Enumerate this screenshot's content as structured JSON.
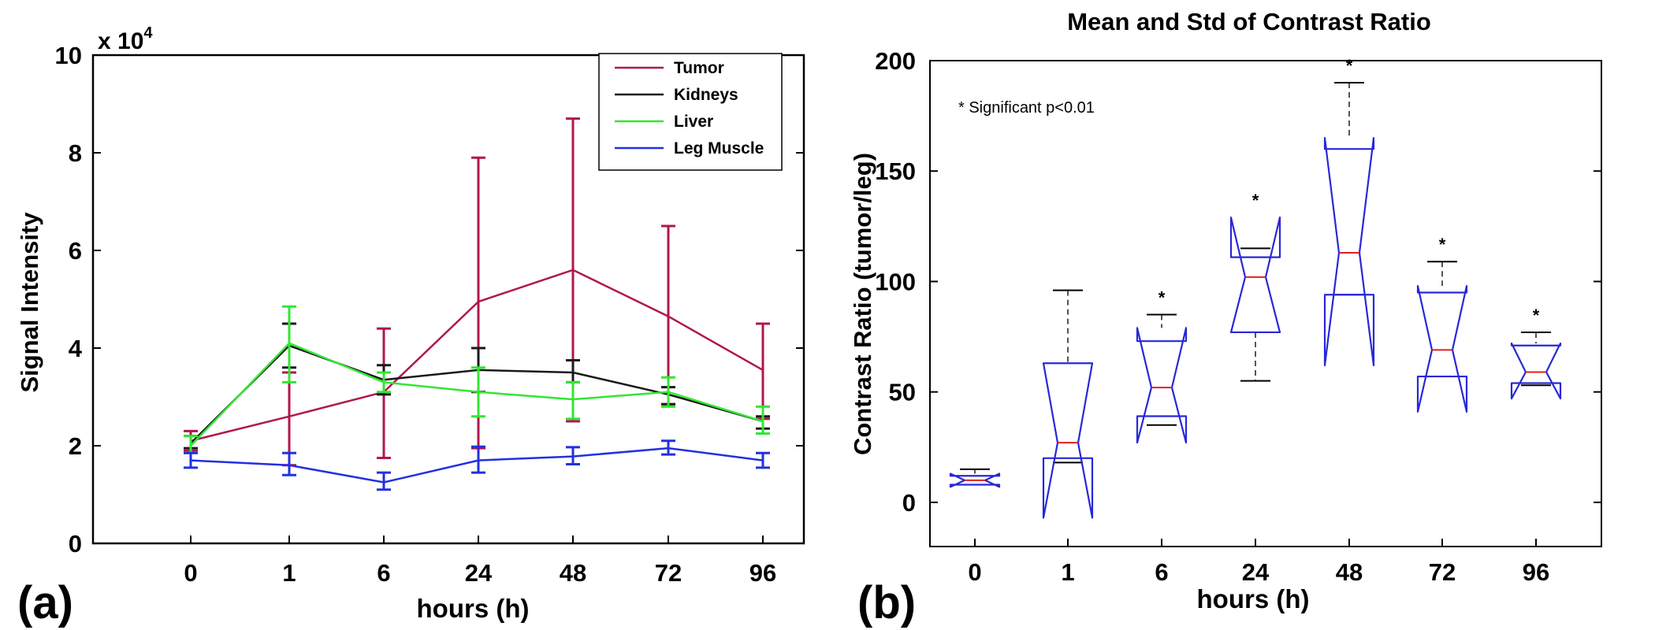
{
  "chart_data": [
    {
      "type": "line",
      "panel_label": "(a)",
      "title": "",
      "xlabel": "hours (h)",
      "ylabel": "Signal Intensity",
      "y_multiplier_label": "x 10",
      "y_multiplier_exponent": "4",
      "categories": [
        "0",
        "1",
        "6",
        "24",
        "48",
        "72",
        "96"
      ],
      "ylim": [
        0,
        10
      ],
      "yticks": [
        "0",
        "2",
        "4",
        "6",
        "8",
        "10"
      ],
      "grid": false,
      "legend_position": "top-right",
      "series": [
        {
          "name": "Tumor",
          "color": "#b0174f",
          "values": [
            2.1,
            2.6,
            3.1,
            4.95,
            5.6,
            4.65,
            3.55
          ],
          "err_low": [
            1.9,
            1.6,
            1.75,
            1.95,
            2.5,
            2.85,
            2.55
          ],
          "err_high": [
            2.3,
            3.5,
            4.4,
            7.9,
            8.7,
            6.5,
            4.5
          ]
        },
        {
          "name": "Kidneys",
          "color": "#1a1a1a",
          "values": [
            2.05,
            4.05,
            3.35,
            3.55,
            3.5,
            3.05,
            2.5
          ],
          "err_low": [
            1.95,
            3.6,
            3.05,
            3.1,
            3.3,
            2.85,
            2.35
          ],
          "err_high": [
            2.2,
            4.5,
            3.65,
            4.0,
            3.75,
            3.2,
            2.6
          ]
        },
        {
          "name": "Liver",
          "color": "#33e633",
          "values": [
            2.0,
            4.1,
            3.3,
            3.1,
            2.95,
            3.1,
            2.5
          ],
          "err_low": [
            1.85,
            3.3,
            3.1,
            2.6,
            2.55,
            2.8,
            2.25
          ],
          "err_high": [
            2.2,
            4.85,
            3.5,
            3.6,
            3.3,
            3.4,
            2.8
          ]
        },
        {
          "name": "Leg Muscle",
          "color": "#2230e0",
          "values": [
            1.7,
            1.6,
            1.25,
            1.7,
            1.78,
            1.95,
            1.7
          ],
          "err_low": [
            1.55,
            1.4,
            1.1,
            1.45,
            1.62,
            1.82,
            1.55
          ],
          "err_high": [
            1.85,
            1.85,
            1.45,
            1.98,
            1.97,
            2.1,
            1.85
          ]
        }
      ]
    },
    {
      "type": "box",
      "panel_label": "(b)",
      "title": "Mean and Std of Contrast Ratio",
      "xlabel": "hours (h)",
      "ylabel": "Contrast Ratio (tumor/leg)",
      "categories": [
        "0",
        "1",
        "6",
        "24",
        "48",
        "72",
        "96"
      ],
      "ylim": [
        -20,
        200
      ],
      "yticks": [
        "0",
        "50",
        "100",
        "150",
        "200"
      ],
      "annotation": "* Significant p<0.01",
      "significance_marker": "*",
      "box_color": "#2828d8",
      "median_color": "#e02020",
      "whisker_color": "#000000",
      "boxes": [
        {
          "label": "0",
          "whisker_low": 8,
          "q1": 8,
          "notch_low": 7,
          "median": 10,
          "notch_high": 13,
          "q3": 12,
          "whisker_high": 15,
          "significant": false
        },
        {
          "label": "1",
          "whisker_low": 18,
          "q1": 20,
          "notch_low": -7,
          "median": 27,
          "notch_high": 63,
          "q3": 63,
          "whisker_high": 96,
          "significant": false
        },
        {
          "label": "6",
          "whisker_low": 35,
          "q1": 39,
          "notch_low": 27,
          "median": 52,
          "notch_high": 79,
          "q3": 73,
          "whisker_high": 85,
          "significant": true
        },
        {
          "label": "24",
          "whisker_low": 55,
          "q1": 77,
          "notch_low": 77,
          "median": 102,
          "notch_high": 129,
          "q3": 111,
          "whisker_high": 115,
          "significant": true
        },
        {
          "label": "48",
          "whisker_low": 94,
          "q1": 94,
          "notch_low": 62,
          "median": 113,
          "notch_high": 165,
          "q3": 160,
          "whisker_high": 190,
          "significant": true
        },
        {
          "label": "72",
          "whisker_low": 57,
          "q1": 57,
          "notch_low": 41,
          "median": 69,
          "notch_high": 98,
          "q3": 95,
          "whisker_high": 109,
          "significant": true
        },
        {
          "label": "96",
          "whisker_low": 53,
          "q1": 54,
          "notch_low": 47,
          "median": 59,
          "notch_high": 72,
          "q3": 71,
          "whisker_high": 77,
          "significant": true
        }
      ]
    }
  ]
}
